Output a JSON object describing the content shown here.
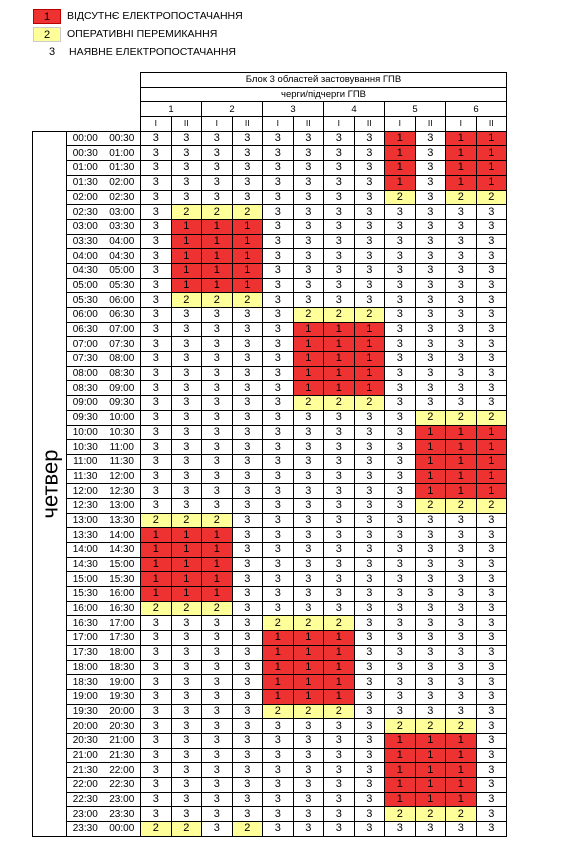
{
  "legend": [
    {
      "num": "1",
      "text": "ВІДСУТНЄ ЕЛЕКТРОПОСТАЧАННЯ",
      "color": "#ee3232"
    },
    {
      "num": "2",
      "text": "ОПЕРАТИВНІ ПЕРЕМИКАННЯ",
      "color": "#ffff99"
    },
    {
      "num": "3",
      "text": "НАЯВНЕ ЕЛЕКТРОПОСТАЧАННЯ",
      "color": "#ffffff"
    }
  ],
  "table": {
    "title": "Блок 3 областей застовування ГПВ",
    "subtitle": "черги/підчерги ГПВ",
    "groups": [
      "1",
      "2",
      "3",
      "4",
      "5",
      "6"
    ],
    "subgroups": [
      "I",
      "II",
      "I",
      "II",
      "I",
      "II",
      "I",
      "II",
      "I",
      "II",
      "I",
      "II"
    ],
    "day": "четвер",
    "rows": [
      {
        "s": "00:00",
        "e": "00:30",
        "v": [
          "3",
          "3",
          "3",
          "3",
          "3",
          "3",
          "3",
          "3",
          "1",
          "3",
          "1",
          "1"
        ]
      },
      {
        "s": "00:30",
        "e": "01:00",
        "v": [
          "3",
          "3",
          "3",
          "3",
          "3",
          "3",
          "3",
          "3",
          "1",
          "3",
          "1",
          "1"
        ]
      },
      {
        "s": "01:00",
        "e": "01:30",
        "v": [
          "3",
          "3",
          "3",
          "3",
          "3",
          "3",
          "3",
          "3",
          "1",
          "3",
          "1",
          "1"
        ]
      },
      {
        "s": "01:30",
        "e": "02:00",
        "v": [
          "3",
          "3",
          "3",
          "3",
          "3",
          "3",
          "3",
          "3",
          "1",
          "3",
          "1",
          "1"
        ]
      },
      {
        "s": "02:00",
        "e": "02:30",
        "v": [
          "3",
          "3",
          "3",
          "3",
          "3",
          "3",
          "3",
          "3",
          "2",
          "3",
          "2",
          "2"
        ]
      },
      {
        "s": "02:30",
        "e": "03:00",
        "v": [
          "3",
          "2",
          "2",
          "2",
          "3",
          "3",
          "3",
          "3",
          "3",
          "3",
          "3",
          "3"
        ]
      },
      {
        "s": "03:00",
        "e": "03:30",
        "v": [
          "3",
          "1",
          "1",
          "1",
          "3",
          "3",
          "3",
          "3",
          "3",
          "3",
          "3",
          "3"
        ]
      },
      {
        "s": "03:30",
        "e": "04:00",
        "v": [
          "3",
          "1",
          "1",
          "1",
          "3",
          "3",
          "3",
          "3",
          "3",
          "3",
          "3",
          "3"
        ]
      },
      {
        "s": "04:00",
        "e": "04:30",
        "v": [
          "3",
          "1",
          "1",
          "1",
          "3",
          "3",
          "3",
          "3",
          "3",
          "3",
          "3",
          "3"
        ]
      },
      {
        "s": "04:30",
        "e": "05:00",
        "v": [
          "3",
          "1",
          "1",
          "1",
          "3",
          "3",
          "3",
          "3",
          "3",
          "3",
          "3",
          "3"
        ]
      },
      {
        "s": "05:00",
        "e": "05:30",
        "v": [
          "3",
          "1",
          "1",
          "1",
          "3",
          "3",
          "3",
          "3",
          "3",
          "3",
          "3",
          "3"
        ]
      },
      {
        "s": "05:30",
        "e": "06:00",
        "v": [
          "3",
          "2",
          "2",
          "2",
          "3",
          "3",
          "3",
          "3",
          "3",
          "3",
          "3",
          "3"
        ]
      },
      {
        "s": "06:00",
        "e": "06:30",
        "v": [
          "3",
          "3",
          "3",
          "3",
          "3",
          "2",
          "2",
          "2",
          "3",
          "3",
          "3",
          "3"
        ]
      },
      {
        "s": "06:30",
        "e": "07:00",
        "v": [
          "3",
          "3",
          "3",
          "3",
          "3",
          "1",
          "1",
          "1",
          "3",
          "3",
          "3",
          "3"
        ]
      },
      {
        "s": "07:00",
        "e": "07:30",
        "v": [
          "3",
          "3",
          "3",
          "3",
          "3",
          "1",
          "1",
          "1",
          "3",
          "3",
          "3",
          "3"
        ]
      },
      {
        "s": "07:30",
        "e": "08:00",
        "v": [
          "3",
          "3",
          "3",
          "3",
          "3",
          "1",
          "1",
          "1",
          "3",
          "3",
          "3",
          "3"
        ]
      },
      {
        "s": "08:00",
        "e": "08:30",
        "v": [
          "3",
          "3",
          "3",
          "3",
          "3",
          "1",
          "1",
          "1",
          "3",
          "3",
          "3",
          "3"
        ]
      },
      {
        "s": "08:30",
        "e": "09:00",
        "v": [
          "3",
          "3",
          "3",
          "3",
          "3",
          "1",
          "1",
          "1",
          "3",
          "3",
          "3",
          "3"
        ]
      },
      {
        "s": "09:00",
        "e": "09:30",
        "v": [
          "3",
          "3",
          "3",
          "3",
          "3",
          "2",
          "2",
          "2",
          "3",
          "3",
          "3",
          "3"
        ]
      },
      {
        "s": "09:30",
        "e": "10:00",
        "v": [
          "3",
          "3",
          "3",
          "3",
          "3",
          "3",
          "3",
          "3",
          "3",
          "2",
          "2",
          "2"
        ]
      },
      {
        "s": "10:00",
        "e": "10:30",
        "v": [
          "3",
          "3",
          "3",
          "3",
          "3",
          "3",
          "3",
          "3",
          "3",
          "1",
          "1",
          "1"
        ]
      },
      {
        "s": "10:30",
        "e": "11:00",
        "v": [
          "3",
          "3",
          "3",
          "3",
          "3",
          "3",
          "3",
          "3",
          "3",
          "1",
          "1",
          "1"
        ]
      },
      {
        "s": "11:00",
        "e": "11:30",
        "v": [
          "3",
          "3",
          "3",
          "3",
          "3",
          "3",
          "3",
          "3",
          "3",
          "1",
          "1",
          "1"
        ]
      },
      {
        "s": "11:30",
        "e": "12:00",
        "v": [
          "3",
          "3",
          "3",
          "3",
          "3",
          "3",
          "3",
          "3",
          "3",
          "1",
          "1",
          "1"
        ]
      },
      {
        "s": "12:00",
        "e": "12:30",
        "v": [
          "3",
          "3",
          "3",
          "3",
          "3",
          "3",
          "3",
          "3",
          "3",
          "1",
          "1",
          "1"
        ]
      },
      {
        "s": "12:30",
        "e": "13:00",
        "v": [
          "3",
          "3",
          "3",
          "3",
          "3",
          "3",
          "3",
          "3",
          "3",
          "2",
          "2",
          "2"
        ]
      },
      {
        "s": "13:00",
        "e": "13:30",
        "v": [
          "2",
          "2",
          "2",
          "3",
          "3",
          "3",
          "3",
          "3",
          "3",
          "3",
          "3",
          "3"
        ]
      },
      {
        "s": "13:30",
        "e": "14:00",
        "v": [
          "1",
          "1",
          "1",
          "3",
          "3",
          "3",
          "3",
          "3",
          "3",
          "3",
          "3",
          "3"
        ]
      },
      {
        "s": "14:00",
        "e": "14:30",
        "v": [
          "1",
          "1",
          "1",
          "3",
          "3",
          "3",
          "3",
          "3",
          "3",
          "3",
          "3",
          "3"
        ]
      },
      {
        "s": "14:30",
        "e": "15:00",
        "v": [
          "1",
          "1",
          "1",
          "3",
          "3",
          "3",
          "3",
          "3",
          "3",
          "3",
          "3",
          "3"
        ]
      },
      {
        "s": "15:00",
        "e": "15:30",
        "v": [
          "1",
          "1",
          "1",
          "3",
          "3",
          "3",
          "3",
          "3",
          "3",
          "3",
          "3",
          "3"
        ]
      },
      {
        "s": "15:30",
        "e": "16:00",
        "v": [
          "1",
          "1",
          "1",
          "3",
          "3",
          "3",
          "3",
          "3",
          "3",
          "3",
          "3",
          "3"
        ]
      },
      {
        "s": "16:00",
        "e": "16:30",
        "v": [
          "2",
          "2",
          "2",
          "3",
          "3",
          "3",
          "3",
          "3",
          "3",
          "3",
          "3",
          "3"
        ]
      },
      {
        "s": "16:30",
        "e": "17:00",
        "v": [
          "3",
          "3",
          "3",
          "3",
          "2",
          "2",
          "2",
          "3",
          "3",
          "3",
          "3",
          "3"
        ]
      },
      {
        "s": "17:00",
        "e": "17:30",
        "v": [
          "3",
          "3",
          "3",
          "3",
          "1",
          "1",
          "1",
          "3",
          "3",
          "3",
          "3",
          "3"
        ]
      },
      {
        "s": "17:30",
        "e": "18:00",
        "v": [
          "3",
          "3",
          "3",
          "3",
          "1",
          "1",
          "1",
          "3",
          "3",
          "3",
          "3",
          "3"
        ]
      },
      {
        "s": "18:00",
        "e": "18:30",
        "v": [
          "3",
          "3",
          "3",
          "3",
          "1",
          "1",
          "1",
          "3",
          "3",
          "3",
          "3",
          "3"
        ]
      },
      {
        "s": "18:30",
        "e": "19:00",
        "v": [
          "3",
          "3",
          "3",
          "3",
          "1",
          "1",
          "1",
          "3",
          "3",
          "3",
          "3",
          "3"
        ]
      },
      {
        "s": "19:00",
        "e": "19:30",
        "v": [
          "3",
          "3",
          "3",
          "3",
          "1",
          "1",
          "1",
          "3",
          "3",
          "3",
          "3",
          "3"
        ]
      },
      {
        "s": "19:30",
        "e": "20:00",
        "v": [
          "3",
          "3",
          "3",
          "3",
          "2",
          "2",
          "2",
          "3",
          "3",
          "3",
          "3",
          "3"
        ]
      },
      {
        "s": "20:00",
        "e": "20:30",
        "v": [
          "3",
          "3",
          "3",
          "3",
          "3",
          "3",
          "3",
          "3",
          "2",
          "2",
          "2",
          "3"
        ]
      },
      {
        "s": "20:30",
        "e": "21:00",
        "v": [
          "3",
          "3",
          "3",
          "3",
          "3",
          "3",
          "3",
          "3",
          "1",
          "1",
          "1",
          "3"
        ]
      },
      {
        "s": "21:00",
        "e": "21:30",
        "v": [
          "3",
          "3",
          "3",
          "3",
          "3",
          "3",
          "3",
          "3",
          "1",
          "1",
          "1",
          "3"
        ]
      },
      {
        "s": "21:30",
        "e": "22:00",
        "v": [
          "3",
          "3",
          "3",
          "3",
          "3",
          "3",
          "3",
          "3",
          "1",
          "1",
          "1",
          "3"
        ]
      },
      {
        "s": "22:00",
        "e": "22:30",
        "v": [
          "3",
          "3",
          "3",
          "3",
          "3",
          "3",
          "3",
          "3",
          "1",
          "1",
          "1",
          "3"
        ]
      },
      {
        "s": "22:30",
        "e": "23:00",
        "v": [
          "3",
          "3",
          "3",
          "3",
          "3",
          "3",
          "3",
          "3",
          "1",
          "1",
          "1",
          "3"
        ]
      },
      {
        "s": "23:00",
        "e": "23:30",
        "v": [
          "3",
          "3",
          "3",
          "3",
          "3",
          "3",
          "3",
          "3",
          "2",
          "2",
          "2",
          "3"
        ]
      },
      {
        "s": "23:30",
        "e": "00:00",
        "v": [
          "2",
          "2",
          "3",
          "2",
          "3",
          "3",
          "3",
          "3",
          "3",
          "3",
          "3",
          "3"
        ]
      }
    ]
  }
}
